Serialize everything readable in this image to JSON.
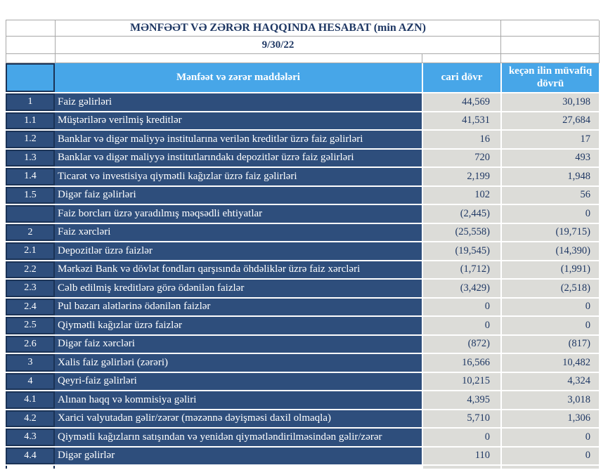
{
  "report": {
    "title": "MƏNFƏƏT VƏ ZƏRƏR HAQQINDA HESABAT (min AZN)",
    "date": "9/30/22"
  },
  "table": {
    "column_headers": {
      "items": "Mənfəət və zərər maddələri",
      "current_period": "cari dövr",
      "previous_period": "keçən ilin müvafiq dövrü"
    },
    "rows": [
      {
        "no": "1",
        "label": "Faiz  gəlirləri",
        "current": "44,569",
        "previous": "30,198",
        "bold": true
      },
      {
        "no": "1.1",
        "label": "Müştərilərə verilmiş kreditlər",
        "current": "41,531",
        "previous": "27,684",
        "bold": false
      },
      {
        "no": "1.2",
        "label": "Banklar və digər maliyyə institularına verilən kreditlər üzrə faiz gəlirləri",
        "current": "16",
        "previous": "17",
        "bold": false
      },
      {
        "no": "1.3",
        "label": "Banklar və digər maliyyə institutlarındakı depozitlər üzrə faiz gəlirləri",
        "current": "720",
        "previous": "493",
        "bold": false
      },
      {
        "no": "1.4",
        "label": "Ticarət və investisiya qiymətli kağızlar üzrə faiz gəlirləri",
        "current": "2,199",
        "previous": "1,948",
        "bold": false
      },
      {
        "no": "1.5",
        "label": "Digər faiz gəlirləri",
        "current": "102",
        "previous": "56",
        "bold": false
      },
      {
        "no": "",
        "label": "Faiz borcları üzrə yaradılmış məqsədli ehtiyatlar",
        "current": "(2,445)",
        "previous": "0",
        "bold": false
      },
      {
        "no": "2",
        "label": "Faiz xərcləri",
        "current": "(25,558)",
        "previous": "(19,715)",
        "bold": true
      },
      {
        "no": "2.1",
        "label": "Depozitlər üzrə faizlər",
        "current": "(19,545)",
        "previous": "(14,390)",
        "bold": false
      },
      {
        "no": "2.2",
        "label": "Mərkəzi Bank və dövlət fondları qarşısında öhdəliklər üzrə faiz xərcləri",
        "current": "(1,712)",
        "previous": "(1,991)",
        "bold": false
      },
      {
        "no": "2.3",
        "label": "Cəlb edilmiş kreditlərə görə ödənilən faizlər",
        "current": "(3,429)",
        "previous": "(2,518)",
        "bold": false
      },
      {
        "no": "2.4",
        "label": "Pul bazarı alətlərinə ödənilən faizlər",
        "current": "0",
        "previous": "0",
        "bold": false
      },
      {
        "no": "2.5",
        "label": "Qiymətli kağızlar üzrə faizlər",
        "current": "0",
        "previous": "0",
        "bold": false
      },
      {
        "no": "2.6",
        "label": "Digər faiz xərcləri",
        "current": "(872)",
        "previous": "(817)",
        "bold": false
      },
      {
        "no": "3",
        "label": "Xalis faiz gəlirləri (zərəri)",
        "current": "16,566",
        "previous": "10,482",
        "bold": true
      },
      {
        "no": "4",
        "label": "Qeyri-faiz gəlirləri",
        "current": "10,215",
        "previous": "4,324",
        "bold": true
      },
      {
        "no": "4.1",
        "label": "Alınan haqq və kommisiya gəliri",
        "current": "4,395",
        "previous": "3,018",
        "bold": false
      },
      {
        "no": "4.2",
        "label": "Xarici valyutadan gəlir/zərər (məzənnə dəyişməsi daxil olmaqla)",
        "current": "5,710",
        "previous": "1,306",
        "bold": false
      },
      {
        "no": "4.3",
        "label": "Qiymətli kağızların satışından və yenidən qiymətləndirilməsindən gəlir/zərər",
        "current": "0",
        "previous": "0",
        "bold": false
      },
      {
        "no": "4.4",
        "label": "Digər gəlirlər",
        "current": "110",
        "previous": "0",
        "bold": false
      }
    ]
  },
  "colors": {
    "header_blue": "#47A6E8",
    "row_navy": "#2E4E7C",
    "dark_border": "#1B3356",
    "value_gray": "#DCDCD8",
    "text_navy": "#1F3864"
  }
}
